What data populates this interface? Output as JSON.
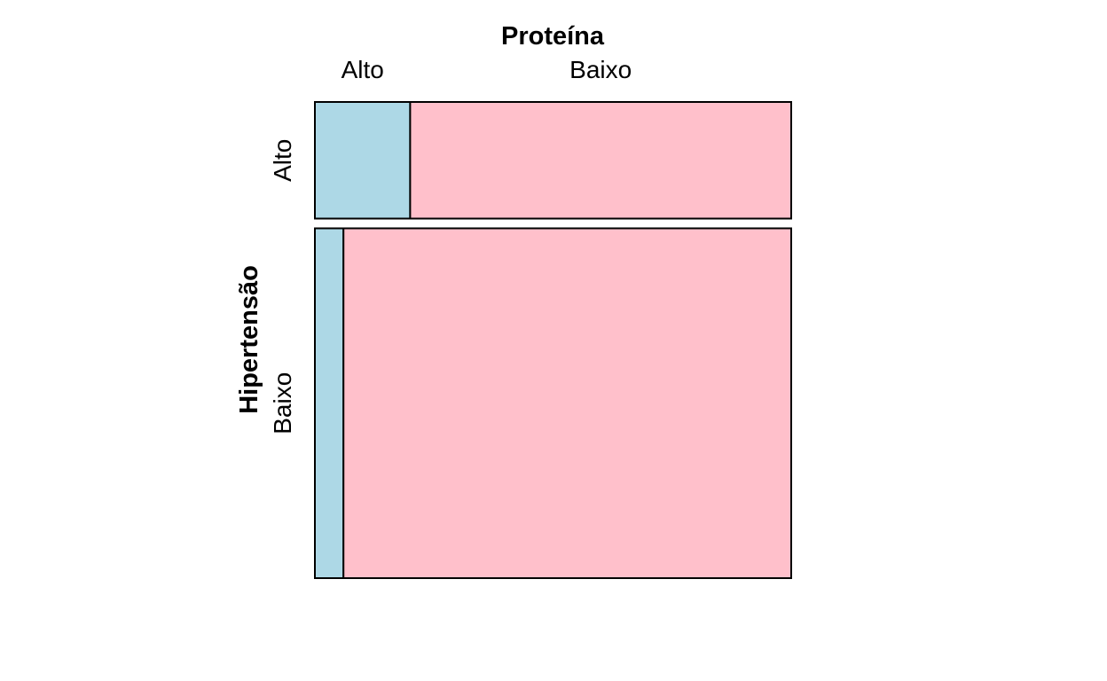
{
  "chart_data": {
    "type": "mosaic",
    "col_variable": "Proteína",
    "row_variable": "Hipertensão",
    "col_categories": [
      "Alto",
      "Baixo"
    ],
    "row_categories": [
      "Alto",
      "Baixo"
    ],
    "row_proportions": [
      0.25,
      0.75
    ],
    "cells": [
      {
        "row": "Alto",
        "col": "Alto",
        "proportion_within_row": 0.2,
        "color": "#add8e6"
      },
      {
        "row": "Alto",
        "col": "Baixo",
        "proportion_within_row": 0.8,
        "color": "#ffc0cb"
      },
      {
        "row": "Baixo",
        "col": "Alto",
        "proportion_within_row": 0.06,
        "color": "#add8e6"
      },
      {
        "row": "Baixo",
        "col": "Baixo",
        "proportion_within_row": 0.94,
        "color": "#ffc0cb"
      }
    ],
    "colors": {
      "Alto": "#add8e6",
      "Baixo": "#ffc0cb"
    }
  }
}
